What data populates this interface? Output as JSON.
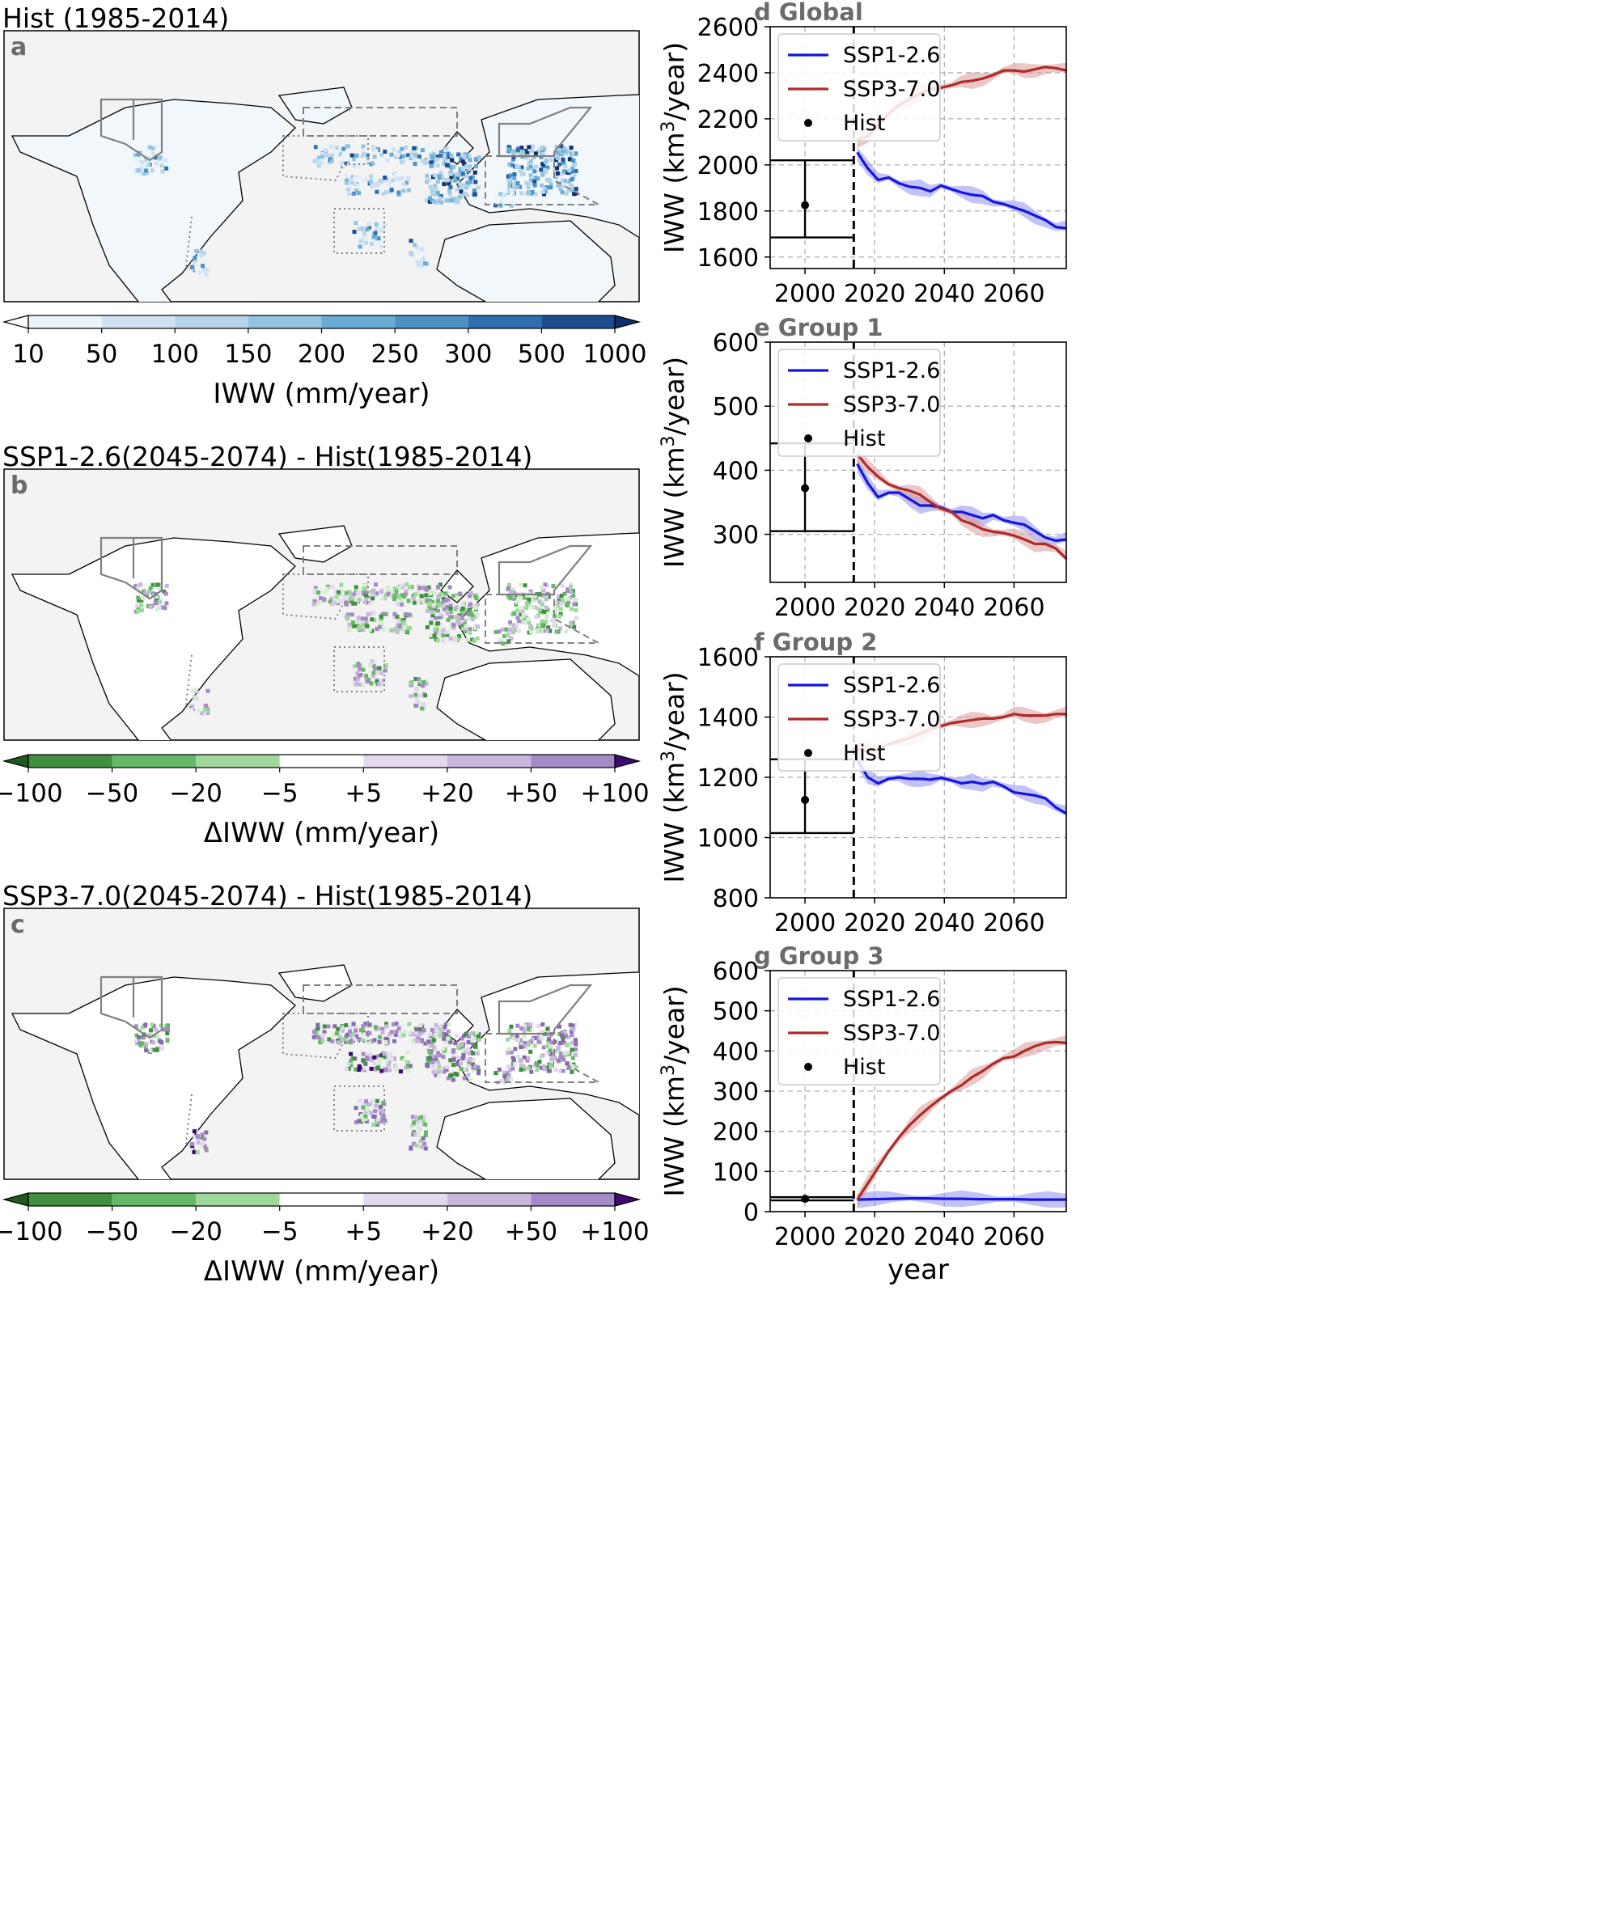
{
  "colors": {
    "ssp126": "#1515e0",
    "ssp370": "#b02a2a",
    "ssp126_band": "#8f8ff0",
    "ssp370_band": "#d99a9a",
    "ocean": "#f3f3f3",
    "panel_label": "#6b6b6b",
    "blues": [
      "#eaf2fa",
      "#d0e2f2",
      "#b7d4ea",
      "#93c4e0",
      "#68acd5",
      "#4a91c5",
      "#2f6fb0",
      "#1d4d8f",
      "#0d2f6c"
    ],
    "greens": [
      "#3f8f3f",
      "#66b866",
      "#9fd89a",
      "#d3efcd"
    ],
    "purples": [
      "#e3d9ee",
      "#c8b6dd",
      "#a58ac8",
      "#876aad",
      "#3f0a6f"
    ]
  },
  "maps": [
    {
      "label": "a",
      "title": "Hist (1985-2014)",
      "type": "abs"
    },
    {
      "label": "b",
      "title": "SSP1-2.6(2045-2074) - Hist(1985-2014)",
      "type": "diff126"
    },
    {
      "label": "c",
      "title": "SSP3-7.0(2045-2074) - Hist(1985-2014)",
      "type": "diff370"
    }
  ],
  "colorbars": [
    {
      "ticks": [
        "10",
        "50",
        "100",
        "150",
        "200",
        "250",
        "300",
        "500",
        "1000"
      ],
      "label": "IWW (mm/year)"
    },
    {
      "ticks": [
        "−100",
        "−50",
        "−20",
        "−5",
        "+5",
        "+20",
        "+50",
        "+100"
      ],
      "label": "ΔIWW (mm/year)"
    },
    {
      "ticks": [
        "−100",
        "−50",
        "−20",
        "−5",
        "+5",
        "+20",
        "+50",
        "+100"
      ],
      "label": "ΔIWW (mm/year)"
    }
  ],
  "legend": {
    "ssp126": "SSP1-2.6",
    "ssp370": "SSP3-7.0",
    "hist": "Hist"
  },
  "chart_data": [
    {
      "type": "line",
      "label": "d",
      "title": "Global",
      "ylabel": "IWW (km³/year)",
      "xlabel": "",
      "xlim": [
        1990,
        2075
      ],
      "ylim": [
        1550,
        2600
      ],
      "yticks": [
        1600,
        1800,
        2000,
        2200,
        2400,
        2600
      ],
      "xticks": [
        2000,
        2020,
        2040,
        2060
      ],
      "hist": {
        "x": 2000,
        "mean": 1825,
        "low": 1685,
        "high": 2020
      },
      "series": [
        {
          "name": "SSP1-2.6",
          "x": [
            2015,
            2018,
            2021,
            2024,
            2027,
            2030,
            2033,
            2036,
            2039,
            2042,
            2045,
            2048,
            2051,
            2054,
            2057,
            2060,
            2063,
            2066,
            2069,
            2072,
            2075
          ],
          "values": [
            2055,
            1985,
            1935,
            1945,
            1920,
            1905,
            1900,
            1885,
            1910,
            1895,
            1880,
            1870,
            1865,
            1840,
            1830,
            1815,
            1800,
            1780,
            1760,
            1730,
            1725
          ]
        },
        {
          "name": "SSP3-7.0",
          "x": [
            2015,
            2018,
            2021,
            2024,
            2027,
            2030,
            2033,
            2036,
            2039,
            2042,
            2045,
            2048,
            2051,
            2054,
            2057,
            2060,
            2063,
            2066,
            2069,
            2072,
            2075
          ],
          "values": [
            2110,
            2125,
            2170,
            2220,
            2260,
            2285,
            2310,
            2330,
            2335,
            2345,
            2360,
            2365,
            2375,
            2390,
            2410,
            2410,
            2405,
            2415,
            2425,
            2420,
            2410
          ]
        }
      ]
    },
    {
      "type": "line",
      "label": "e",
      "title": "Group 1",
      "ylabel": "IWW (km³/year)",
      "xlabel": "",
      "xlim": [
        1990,
        2075
      ],
      "ylim": [
        225,
        600
      ],
      "yticks": [
        300,
        400,
        500,
        600
      ],
      "xticks": [
        2000,
        2020,
        2040,
        2060
      ],
      "hist": {
        "x": 2000,
        "mean": 372,
        "low": 305,
        "high": 442
      },
      "series": [
        {
          "name": "SSP1-2.6",
          "x": [
            2015,
            2018,
            2021,
            2024,
            2027,
            2030,
            2033,
            2036,
            2039,
            2042,
            2045,
            2048,
            2051,
            2054,
            2057,
            2060,
            2063,
            2066,
            2069,
            2072,
            2075
          ],
          "values": [
            410,
            380,
            358,
            365,
            365,
            355,
            345,
            345,
            342,
            335,
            335,
            330,
            325,
            330,
            322,
            318,
            315,
            305,
            295,
            290,
            292
          ]
        },
        {
          "name": "SSP3-7.0",
          "x": [
            2015,
            2018,
            2021,
            2024,
            2027,
            2030,
            2033,
            2036,
            2039,
            2042,
            2045,
            2048,
            2051,
            2054,
            2057,
            2060,
            2063,
            2066,
            2069,
            2072,
            2075
          ],
          "values": [
            425,
            405,
            390,
            378,
            372,
            368,
            362,
            350,
            340,
            335,
            322,
            316,
            308,
            304,
            302,
            298,
            292,
            285,
            285,
            278,
            262
          ]
        }
      ]
    },
    {
      "type": "line",
      "label": "f",
      "title": "Group 2",
      "ylabel": "IWW (km³/year)",
      "xlabel": "",
      "xlim": [
        1990,
        2075
      ],
      "ylim": [
        800,
        1600
      ],
      "yticks": [
        800,
        1000,
        1200,
        1400,
        1600
      ],
      "xticks": [
        2000,
        2020,
        2040,
        2060
      ],
      "hist": {
        "x": 2000,
        "mean": 1125,
        "low": 1015,
        "high": 1260
      },
      "series": [
        {
          "name": "SSP1-2.6",
          "x": [
            2015,
            2018,
            2021,
            2024,
            2027,
            2030,
            2033,
            2036,
            2039,
            2042,
            2045,
            2048,
            2051,
            2054,
            2057,
            2060,
            2063,
            2066,
            2069,
            2072,
            2075
          ],
          "values": [
            1260,
            1200,
            1180,
            1195,
            1200,
            1195,
            1195,
            1192,
            1198,
            1190,
            1180,
            1185,
            1178,
            1185,
            1170,
            1150,
            1145,
            1140,
            1130,
            1100,
            1080
          ]
        },
        {
          "name": "SSP3-7.0",
          "x": [
            2015,
            2018,
            2021,
            2024,
            2027,
            2030,
            2033,
            2036,
            2039,
            2042,
            2045,
            2048,
            2051,
            2054,
            2057,
            2060,
            2063,
            2066,
            2069,
            2072,
            2075
          ],
          "values": [
            1295,
            1285,
            1290,
            1310,
            1320,
            1330,
            1345,
            1360,
            1370,
            1380,
            1385,
            1390,
            1395,
            1395,
            1400,
            1410,
            1405,
            1405,
            1405,
            1410,
            1410
          ]
        }
      ]
    },
    {
      "type": "line",
      "label": "g",
      "title": "Group 3",
      "ylabel": "IWW (km³/year)",
      "xlabel": "year",
      "xlim": [
        1990,
        2075
      ],
      "ylim": [
        0,
        600
      ],
      "yticks": [
        0,
        100,
        200,
        300,
        400,
        500,
        600
      ],
      "xticks": [
        2000,
        2020,
        2040,
        2060
      ],
      "hist": {
        "x": 2000,
        "mean": 32,
        "low": 28,
        "high": 36
      },
      "series": [
        {
          "name": "SSP1-2.6",
          "x": [
            2015,
            2020,
            2025,
            2030,
            2035,
            2040,
            2045,
            2050,
            2055,
            2060,
            2065,
            2070,
            2075
          ],
          "values": [
            30,
            31,
            32,
            33,
            33,
            32,
            32,
            31,
            31,
            31,
            30,
            30,
            30
          ]
        },
        {
          "name": "SSP3-7.0",
          "x": [
            2015,
            2018,
            2021,
            2024,
            2027,
            2030,
            2033,
            2036,
            2039,
            2042,
            2045,
            2048,
            2051,
            2054,
            2057,
            2060,
            2063,
            2066,
            2069,
            2072,
            2075
          ],
          "values": [
            30,
            70,
            110,
            150,
            185,
            215,
            240,
            262,
            282,
            300,
            315,
            335,
            350,
            368,
            382,
            386,
            400,
            412,
            420,
            422,
            420
          ]
        }
      ]
    }
  ]
}
